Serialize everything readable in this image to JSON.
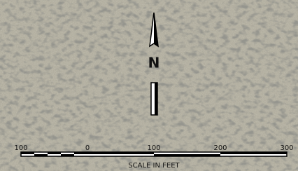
{
  "north_arrow": {
    "label": "N"
  },
  "scale_bar": {
    "labels": [
      "100",
      "0",
      "100",
      "200",
      "300"
    ],
    "title": "SCALE IN FEET"
  }
}
